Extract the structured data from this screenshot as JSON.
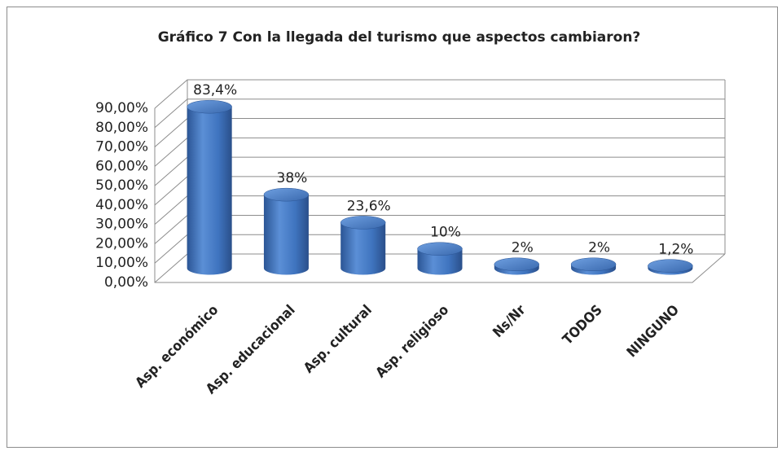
{
  "chart_data": {
    "type": "bar3d",
    "title": "Gráfico 7 Con la llegada del turismo que aspectos cambiaron?",
    "categories": [
      "Asp. económico",
      "Asp. educacional",
      "Asp. cultural",
      "Asp. religioso",
      "Ns/Nr",
      "TODOS",
      "NINGUNO"
    ],
    "values": [
      83.4,
      38,
      23.6,
      10,
      2,
      2,
      1.2
    ],
    "value_labels": [
      "83,4%",
      "38%",
      "23,6%",
      "10%",
      "2%",
      "2%",
      "1,2%"
    ],
    "color": "#3f74bf",
    "ylim": [
      0,
      90
    ],
    "yticks": [
      {
        "value": 0,
        "label": "0,00%"
      },
      {
        "value": 10,
        "label": "10,00%"
      },
      {
        "value": 20,
        "label": "20,00%"
      },
      {
        "value": 30,
        "label": "30,00%"
      },
      {
        "value": 40,
        "label": "40,00%"
      },
      {
        "value": 50,
        "label": "50,00%"
      },
      {
        "value": 60,
        "label": "60,00%"
      },
      {
        "value": 70,
        "label": "70,00%"
      },
      {
        "value": 80,
        "label": "80,00%"
      },
      {
        "value": 90,
        "label": "90,00%"
      }
    ],
    "grid": true
  }
}
